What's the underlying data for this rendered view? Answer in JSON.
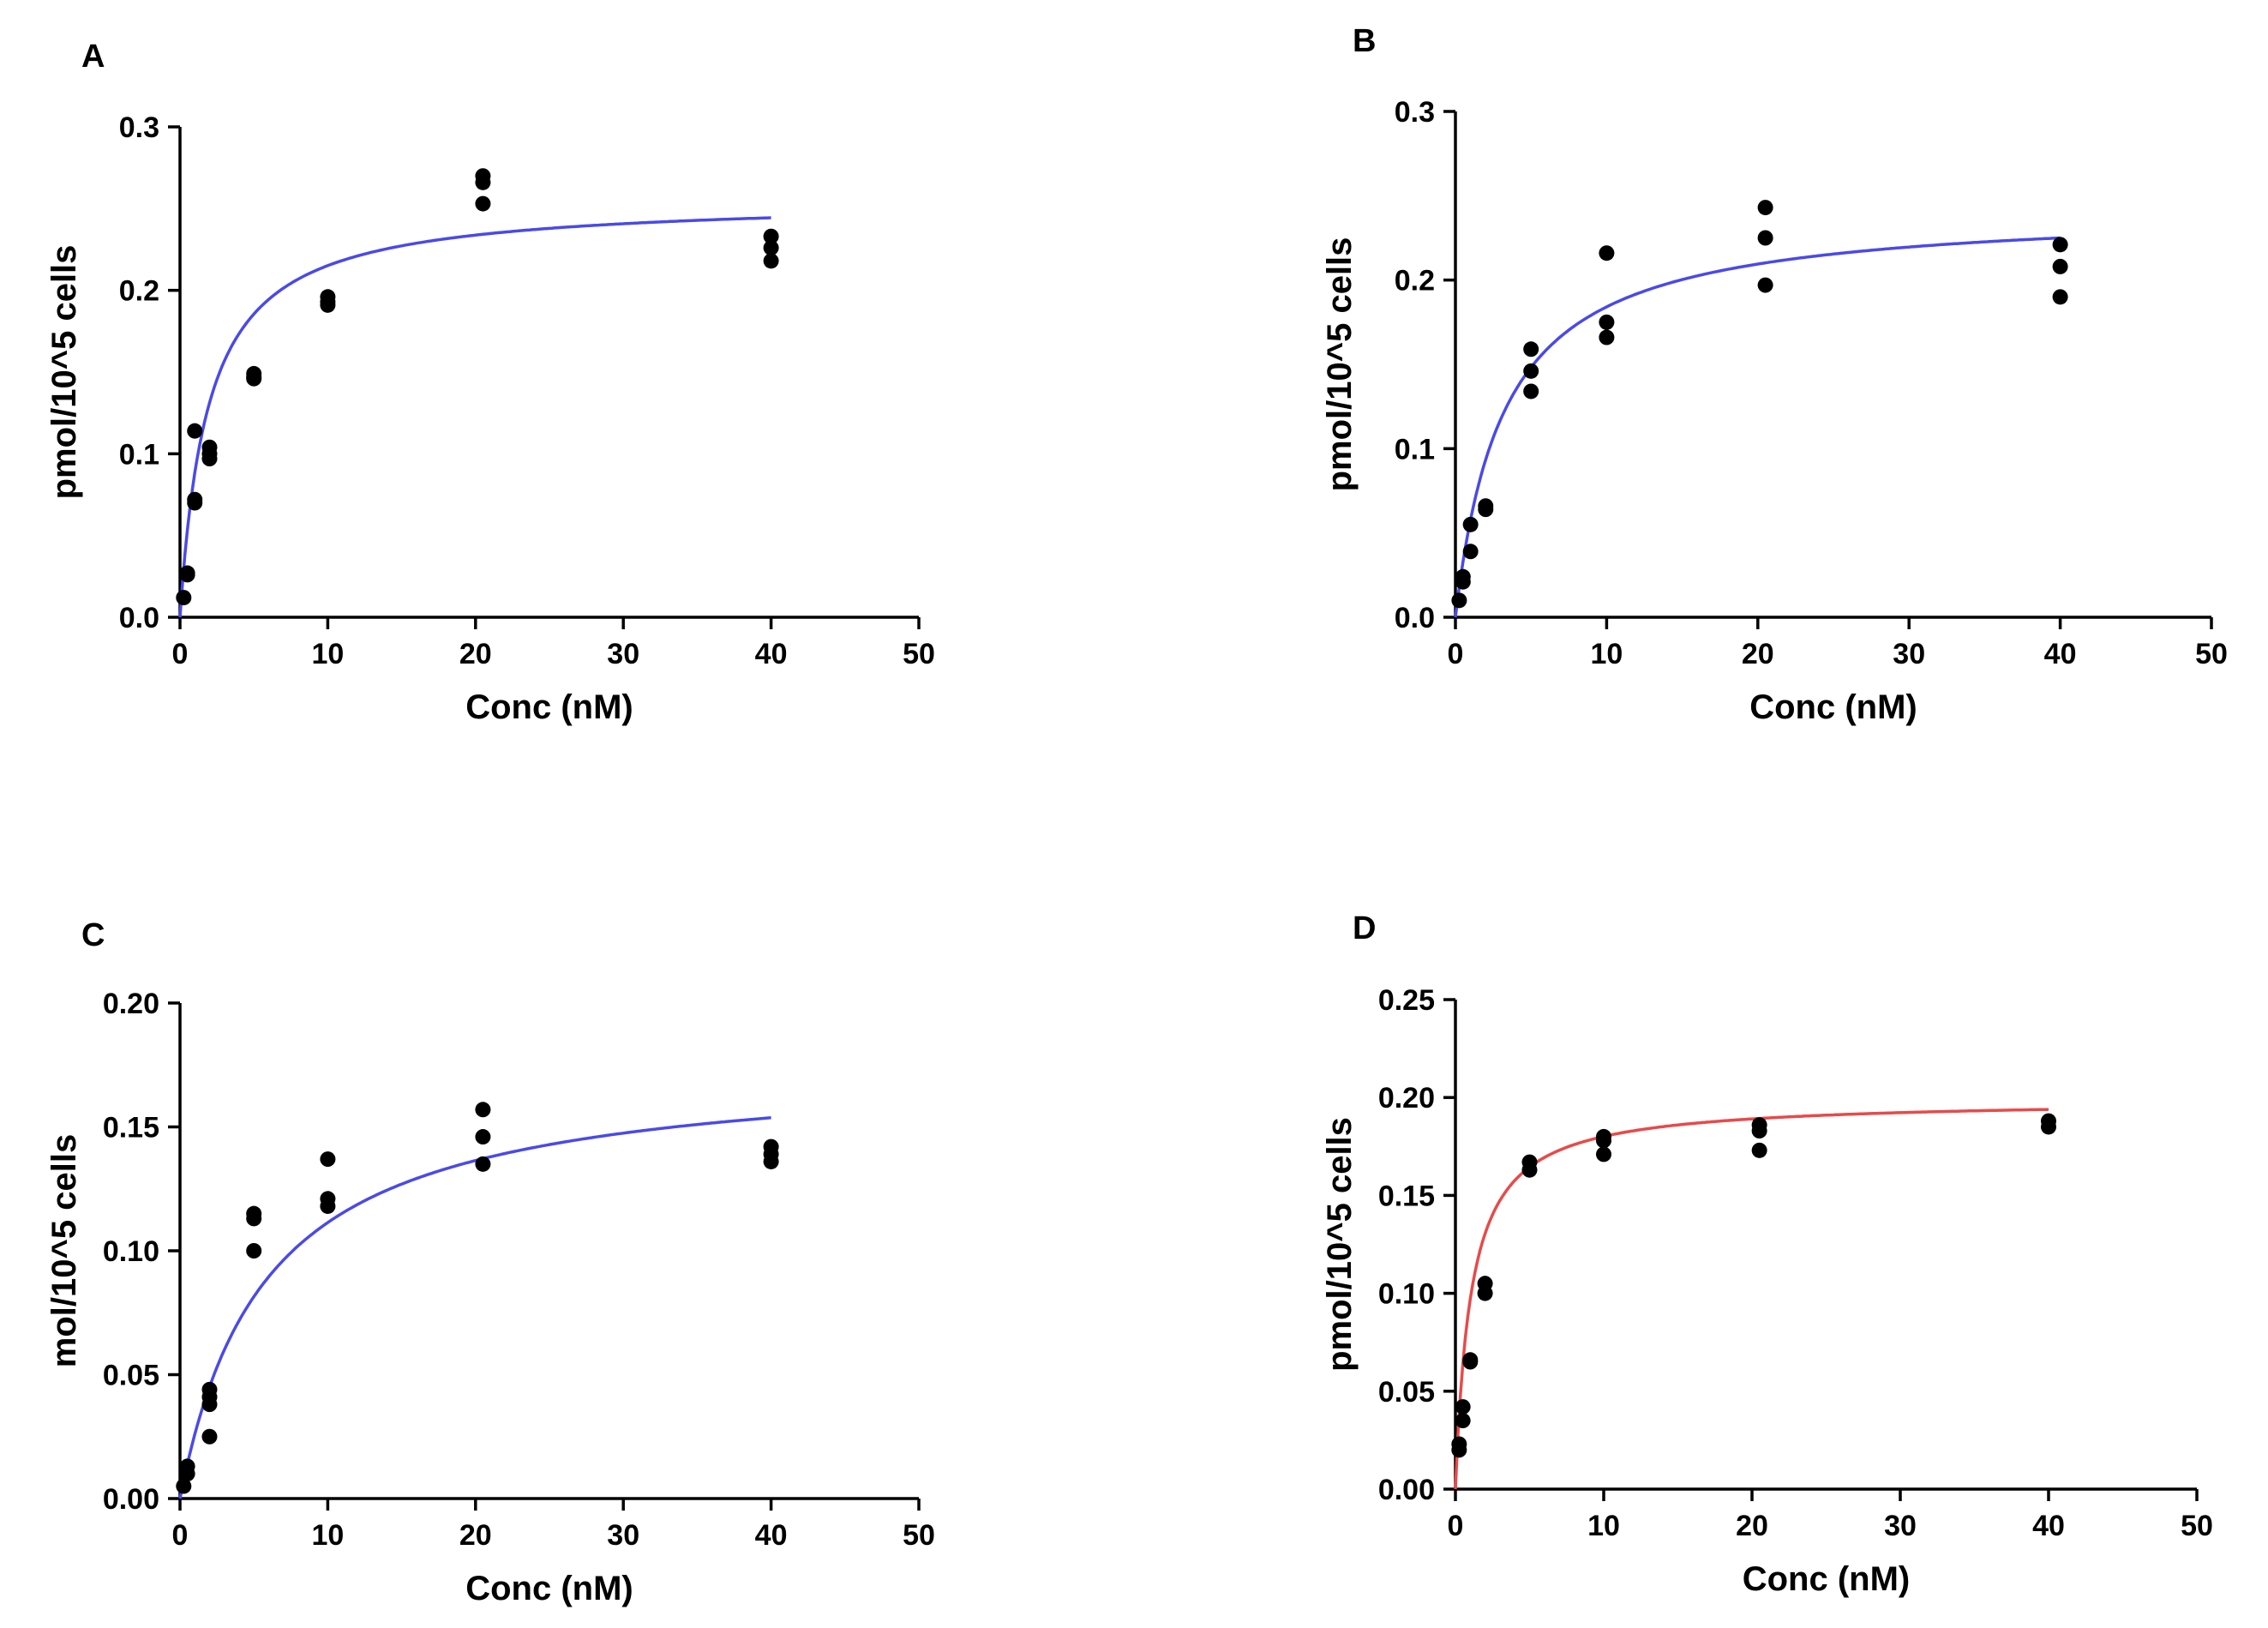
{
  "chart_data": [
    {
      "panel": "A",
      "type": "scatter",
      "xlabel": "Conc (nM)",
      "ylabel": "pmol/10^5 cells",
      "xlim": [
        0,
        50
      ],
      "ylim": [
        0,
        0.3
      ],
      "xticks": [
        "0",
        "10",
        "20",
        "30",
        "40",
        "50"
      ],
      "yticks": [
        "0.0",
        "0.1",
        "0.2",
        "0.3"
      ],
      "grid": false,
      "curve_color": "#4a4ae8",
      "fit": {
        "model": "one-site saturation",
        "bmax": 0.256,
        "kd": 1.9,
        "x_end": 40
      },
      "points": [
        [
          0.25,
          0.012
        ],
        [
          0.5,
          0.026
        ],
        [
          0.5,
          0.027
        ],
        [
          1,
          0.07
        ],
        [
          1,
          0.072
        ],
        [
          1,
          0.114
        ],
        [
          2,
          0.097
        ],
        [
          2,
          0.1
        ],
        [
          2,
          0.104
        ],
        [
          5,
          0.146
        ],
        [
          5,
          0.147
        ],
        [
          5,
          0.149
        ],
        [
          10,
          0.191
        ],
        [
          10,
          0.193
        ],
        [
          10,
          0.196
        ],
        [
          20.5,
          0.253
        ],
        [
          20.5,
          0.266
        ],
        [
          20.5,
          0.27
        ],
        [
          40,
          0.218
        ],
        [
          40,
          0.226
        ],
        [
          40,
          0.233
        ]
      ]
    },
    {
      "panel": "B",
      "type": "scatter",
      "xlabel": "Conc (nM)",
      "ylabel": "pmol/10^5 cells",
      "xlim": [
        0,
        50
      ],
      "ylim": [
        0,
        0.3
      ],
      "xticks": [
        "0",
        "10",
        "20",
        "30",
        "40",
        "50"
      ],
      "yticks": [
        "0.0",
        "0.1",
        "0.2",
        "0.3"
      ],
      "grid": false,
      "curve_color": "#4a4ae8",
      "fit": {
        "model": "one-site saturation",
        "bmax": 0.243,
        "kd": 3.2,
        "x_end": 40
      },
      "points": [
        [
          0.25,
          0.01
        ],
        [
          0.5,
          0.021
        ],
        [
          0.5,
          0.024
        ],
        [
          1,
          0.039
        ],
        [
          1,
          0.055
        ],
        [
          2,
          0.064
        ],
        [
          2,
          0.066
        ],
        [
          5,
          0.134
        ],
        [
          5,
          0.146
        ],
        [
          5,
          0.159
        ],
        [
          10,
          0.166
        ],
        [
          10,
          0.175
        ],
        [
          10,
          0.216
        ],
        [
          20.5,
          0.197
        ],
        [
          20.5,
          0.225
        ],
        [
          20.5,
          0.243
        ],
        [
          40,
          0.19
        ],
        [
          40,
          0.208
        ],
        [
          40,
          0.221
        ]
      ]
    },
    {
      "panel": "C",
      "type": "scatter",
      "xlabel": "Conc (nM)",
      "ylabel": "mol/10^5 cells",
      "xlim": [
        0,
        50
      ],
      "ylim": [
        0,
        0.2
      ],
      "xticks": [
        "0",
        "10",
        "20",
        "30",
        "40",
        "50"
      ],
      "yticks": [
        "0.00",
        "0.05",
        "0.10",
        "0.15",
        "0.20"
      ],
      "grid": false,
      "curve_color": "#4a4ae8",
      "fit": {
        "model": "one-site saturation",
        "bmax": 0.176,
        "kd": 5.8,
        "x_end": 40
      },
      "points": [
        [
          0.25,
          0.005
        ],
        [
          0.5,
          0.01
        ],
        [
          0.5,
          0.013
        ],
        [
          2,
          0.025
        ],
        [
          2,
          0.038
        ],
        [
          2,
          0.041
        ],
        [
          2,
          0.044
        ],
        [
          5,
          0.1
        ],
        [
          5,
          0.113
        ],
        [
          5,
          0.115
        ],
        [
          10,
          0.118
        ],
        [
          10,
          0.121
        ],
        [
          10,
          0.137
        ],
        [
          20.5,
          0.135
        ],
        [
          20.5,
          0.146
        ],
        [
          20.5,
          0.157
        ],
        [
          40,
          0.136
        ],
        [
          40,
          0.139
        ],
        [
          40,
          0.142
        ]
      ]
    },
    {
      "panel": "D",
      "type": "scatter",
      "xlabel": "Conc (nM)",
      "ylabel": "pmol/10^5 cells",
      "xlim": [
        0,
        50
      ],
      "ylim": [
        0,
        0.25
      ],
      "xticks": [
        "0",
        "10",
        "20",
        "30",
        "40",
        "50"
      ],
      "yticks": [
        "0.00",
        "0.05",
        "0.10",
        "0.15",
        "0.20",
        "0.25"
      ],
      "grid": false,
      "curve_color": "#e84a4a",
      "fit": {
        "model": "one-site saturation",
        "bmax": 0.199,
        "kd": 1.05,
        "x_end": 40
      },
      "points": [
        [
          0.25,
          0.02
        ],
        [
          0.25,
          0.023
        ],
        [
          0.5,
          0.035
        ],
        [
          0.5,
          0.042
        ],
        [
          1,
          0.065
        ],
        [
          1,
          0.066
        ],
        [
          2,
          0.1
        ],
        [
          2,
          0.105
        ],
        [
          5,
          0.163
        ],
        [
          5,
          0.167
        ],
        [
          10,
          0.171
        ],
        [
          10,
          0.178
        ],
        [
          10,
          0.18
        ],
        [
          20.5,
          0.173
        ],
        [
          20.5,
          0.183
        ],
        [
          20.5,
          0.186
        ],
        [
          40,
          0.185
        ],
        [
          40,
          0.188
        ]
      ]
    }
  ]
}
